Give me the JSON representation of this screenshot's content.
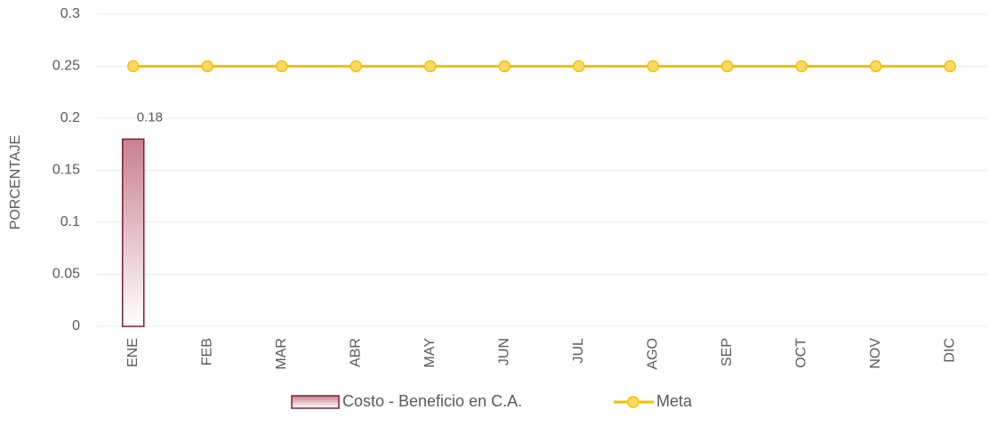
{
  "chart_data": {
    "type": "bar_line",
    "categories": [
      "ENE",
      "FEB",
      "MAR",
      "ABR",
      "MAY",
      "JUN",
      "JUL",
      "AGO",
      "SEP",
      "OCT",
      "NOV",
      "DIC"
    ],
    "series": [
      {
        "name": "Costo - Beneficio en C.A.",
        "type": "bar",
        "color": "#c9808f",
        "edge": "#7a1e3a",
        "values": [
          0.18,
          null,
          null,
          null,
          null,
          null,
          null,
          null,
          null,
          null,
          null,
          null
        ]
      },
      {
        "name": "Meta",
        "type": "line",
        "color": "#f5c000",
        "marker_fill": "#ffd966",
        "values": [
          0.25,
          0.25,
          0.25,
          0.25,
          0.25,
          0.25,
          0.25,
          0.25,
          0.25,
          0.25,
          0.25,
          0.25
        ]
      }
    ],
    "y_label": "PORCENTAJE",
    "ylim": [
      0,
      0.3
    ],
    "yticks": [
      0,
      0.05,
      0.1,
      0.15,
      0.2,
      0.25,
      0.3
    ],
    "grid": true,
    "legend": "bottom"
  }
}
